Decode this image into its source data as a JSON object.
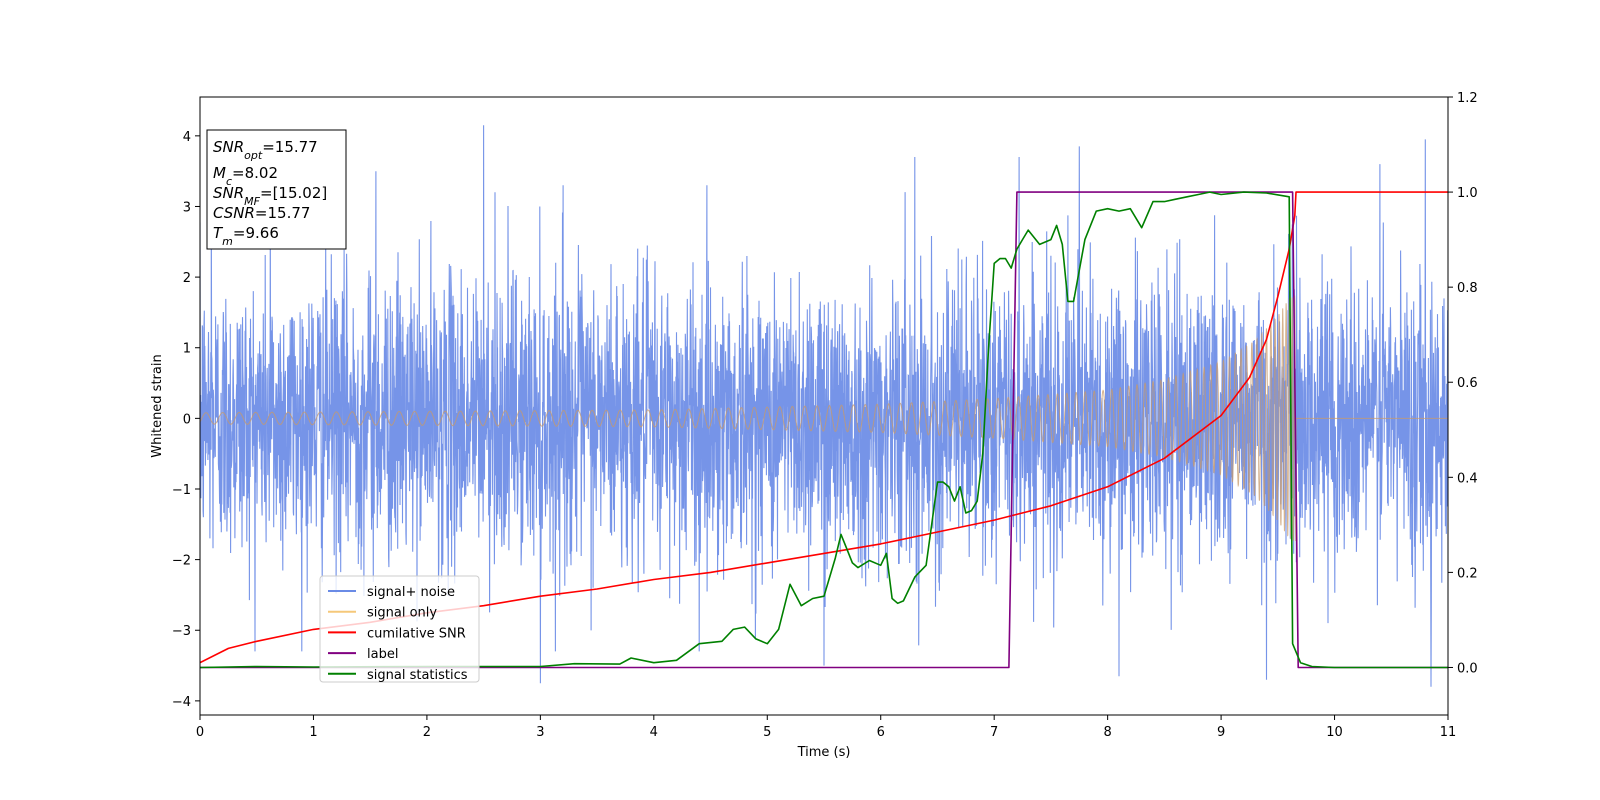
{
  "chart_data": {
    "type": "line",
    "title": "",
    "xlabel": "Time (s)",
    "ylabel": "Whitened strain",
    "xlim": [
      0,
      11
    ],
    "ylim": [
      -4.2,
      4.55
    ],
    "ylim_right": [
      -0.1,
      1.2
    ],
    "x_ticks": [
      "0",
      "1",
      "2",
      "3",
      "4",
      "5",
      "6",
      "7",
      "8",
      "9",
      "10",
      "11"
    ],
    "y_ticks_left": [
      "−4",
      "−3",
      "−2",
      "−1",
      "0",
      "1",
      "2",
      "3",
      "4"
    ],
    "y_ticks_right": [
      "0.0",
      "0.2",
      "0.4",
      "0.6",
      "0.8",
      "1.0",
      "1.2"
    ],
    "grid": false,
    "legend_position": "lower-left",
    "info_box": [
      {
        "base": "SNR",
        "sub": "opt",
        "value": "=15.77"
      },
      {
        "base": "M",
        "sub": "c",
        "value": "=8.02"
      },
      {
        "base": "SNR",
        "sub": "MF",
        "value": "=[15.02]"
      },
      {
        "base": "CSNR",
        "sub": "",
        "value": "=15.77"
      },
      {
        "base": "T",
        "sub": "m",
        "value": "=9.66"
      }
    ],
    "series": [
      {
        "name": "signal+ noise",
        "axis": "left",
        "color": "#6a8be6",
        "kind": "noise",
        "sigma": 1.0,
        "x_range": [
          0,
          11
        ],
        "peaks": [
          [
            0.1,
            3.1
          ],
          [
            0.62,
            3.15
          ],
          [
            1.55,
            3.5
          ],
          [
            2.5,
            4.15
          ],
          [
            2.6,
            3.2
          ],
          [
            3.0,
            -3.75
          ],
          [
            3.2,
            3.3
          ],
          [
            4.4,
            -3.3
          ],
          [
            5.5,
            -3.5
          ],
          [
            6.3,
            3.7
          ],
          [
            7.22,
            3.7
          ],
          [
            7.75,
            3.85
          ],
          [
            8.1,
            -3.65
          ],
          [
            9.4,
            -3.7
          ],
          [
            10.4,
            3.6
          ],
          [
            10.8,
            3.95
          ],
          [
            10.85,
            -3.8
          ]
        ]
      },
      {
        "name": "signal only",
        "axis": "left",
        "color": "#f5c87a",
        "kind": "chirp",
        "x_range": [
          0,
          9.66
        ],
        "amplitude_envelope": [
          [
            0,
            0.08
          ],
          [
            2,
            0.1
          ],
          [
            4,
            0.12
          ],
          [
            6,
            0.2
          ],
          [
            7,
            0.28
          ],
          [
            8,
            0.4
          ],
          [
            8.5,
            0.55
          ],
          [
            9,
            0.8
          ],
          [
            9.3,
            1.1
          ],
          [
            9.5,
            1.45
          ],
          [
            9.6,
            1.7
          ],
          [
            9.66,
            1.75
          ]
        ]
      },
      {
        "name": "cumilative SNR",
        "axis": "right",
        "color": "#ff0000",
        "x": [
          0,
          0.25,
          0.5,
          1,
          1.5,
          2,
          2.5,
          3,
          3.5,
          4,
          4.5,
          5,
          5.5,
          6,
          6.5,
          7,
          7.5,
          8,
          8.5,
          9,
          9.25,
          9.4,
          9.5,
          9.6,
          9.65,
          9.66,
          11
        ],
        "y": [
          0.01,
          0.04,
          0.055,
          0.08,
          0.095,
          0.115,
          0.13,
          0.15,
          0.165,
          0.185,
          0.2,
          0.22,
          0.24,
          0.26,
          0.285,
          0.31,
          0.34,
          0.38,
          0.44,
          0.53,
          0.61,
          0.69,
          0.78,
          0.88,
          0.95,
          1.0,
          1.0
        ]
      },
      {
        "name": "label",
        "axis": "right",
        "color": "#800080",
        "x": [
          0,
          7.13,
          7.2,
          9.63,
          9.68,
          11
        ],
        "y": [
          0,
          0,
          1.0,
          1.0,
          0,
          0
        ]
      },
      {
        "name": "signal statistics",
        "axis": "right",
        "color": "#008000",
        "x": [
          0,
          0.5,
          1,
          2,
          3,
          3.3,
          3.7,
          3.8,
          4,
          4.2,
          4.4,
          4.6,
          4.7,
          4.8,
          4.9,
          5.0,
          5.1,
          5.2,
          5.3,
          5.4,
          5.5,
          5.6,
          5.65,
          5.7,
          5.75,
          5.8,
          5.9,
          6.0,
          6.05,
          6.1,
          6.15,
          6.2,
          6.3,
          6.4,
          6.5,
          6.55,
          6.6,
          6.65,
          6.7,
          6.75,
          6.8,
          6.85,
          6.9,
          6.95,
          7.0,
          7.05,
          7.1,
          7.15,
          7.2,
          7.25,
          7.3,
          7.4,
          7.5,
          7.55,
          7.6,
          7.65,
          7.7,
          7.8,
          7.9,
          8.0,
          8.1,
          8.2,
          8.3,
          8.4,
          8.5,
          8.6,
          8.7,
          8.8,
          8.9,
          9.0,
          9.2,
          9.4,
          9.6,
          9.63,
          9.7,
          9.8,
          10.0,
          11
        ],
        "y": [
          0,
          0.002,
          0.001,
          0.002,
          0.002,
          0.008,
          0.007,
          0.02,
          0.01,
          0.015,
          0.05,
          0.055,
          0.08,
          0.085,
          0.06,
          0.05,
          0.08,
          0.175,
          0.13,
          0.145,
          0.15,
          0.23,
          0.28,
          0.25,
          0.22,
          0.21,
          0.225,
          0.215,
          0.24,
          0.145,
          0.135,
          0.14,
          0.19,
          0.215,
          0.39,
          0.39,
          0.38,
          0.35,
          0.38,
          0.325,
          0.33,
          0.35,
          0.45,
          0.67,
          0.85,
          0.86,
          0.86,
          0.84,
          0.88,
          0.9,
          0.92,
          0.89,
          0.9,
          0.93,
          0.89,
          0.77,
          0.77,
          0.9,
          0.96,
          0.965,
          0.96,
          0.965,
          0.925,
          0.98,
          0.98,
          0.985,
          0.99,
          0.995,
          1.0,
          0.995,
          1.0,
          0.998,
          0.99,
          0.05,
          0.01,
          0.002,
          0.0,
          0.0
        ]
      }
    ]
  }
}
